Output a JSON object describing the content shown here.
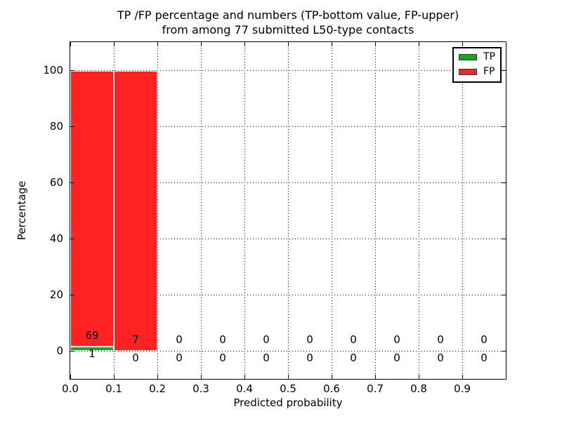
{
  "figure": {
    "title_line1": "TP /FP percentage and numbers (TP-bottom value, FP-upper)",
    "title_line2": "from among 77 submitted L50-type contacts",
    "background": "#ffffff",
    "text_color": "#000000"
  },
  "chart_data": {
    "type": "bar",
    "stacked": true,
    "title": "TP /FP percentage and numbers (TP-bottom value, FP-upper)\nfrom among 77 submitted L50-type contacts",
    "xlabel": "Predicted probability",
    "ylabel": "Percentage",
    "total_submitted_contacts": 77,
    "bin_edges": [
      0.0,
      0.1,
      0.2,
      0.3,
      0.4,
      0.5,
      0.6,
      0.7,
      0.8,
      0.9,
      1.0
    ],
    "xtick_labels": [
      "0.0",
      "0.1",
      "0.2",
      "0.3",
      "0.4",
      "0.5",
      "0.6",
      "0.7",
      "0.8",
      "0.9"
    ],
    "ytick_values": [
      0,
      20,
      40,
      60,
      80,
      100
    ],
    "xlim": [
      0.0,
      1.0
    ],
    "ylim": [
      -10,
      110
    ],
    "grid": "dotted",
    "series": [
      {
        "name": "TP",
        "color": "#22a022",
        "counts": [
          1,
          0,
          0,
          0,
          0,
          0,
          0,
          0,
          0,
          0
        ],
        "percentages": [
          1.4286,
          0,
          0,
          0,
          0,
          0,
          0,
          0,
          0,
          0
        ]
      },
      {
        "name": "FP",
        "color": "#ff2222",
        "counts": [
          69,
          7,
          0,
          0,
          0,
          0,
          0,
          0,
          0,
          0
        ],
        "percentages": [
          98.5714,
          100,
          0,
          0,
          0,
          0,
          0,
          0,
          0,
          0
        ]
      }
    ],
    "legend": {
      "position": "upper right",
      "entries": [
        {
          "label": "TP",
          "color": "#22a022"
        },
        {
          "label": "FP",
          "color": "#ff2222"
        }
      ]
    }
  }
}
